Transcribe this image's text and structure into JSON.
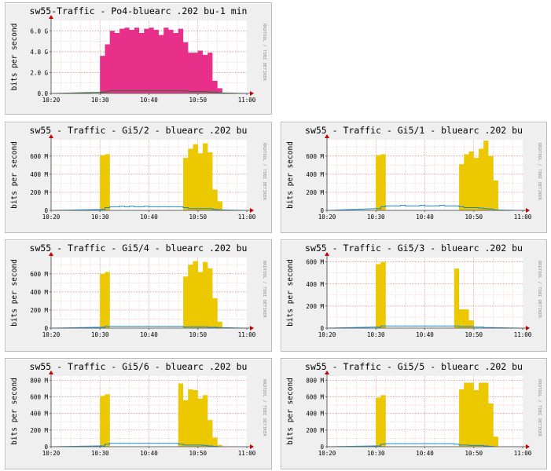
{
  "chart_data": [
    {
      "type": "area",
      "title": "sw55-Traffic - Po4-bluearc .202 bu-1 min",
      "ylabel": "bits per second",
      "side_text": "RRDTOOL / TOBI OETIKER",
      "x_ticks": [
        "10:20",
        "10:30",
        "10:40",
        "10:50",
        "11:00"
      ],
      "y_ticks": [
        "0.0",
        "2.0 G",
        "4.0 G",
        "6.0 G"
      ],
      "ylim": [
        0,
        7000000000
      ],
      "color": "#e8308a",
      "x": [
        "10:30",
        "10:31",
        "10:32",
        "10:33",
        "10:34",
        "10:35",
        "10:36",
        "10:37",
        "10:38",
        "10:39",
        "10:40",
        "10:41",
        "10:42",
        "10:43",
        "10:44",
        "10:45",
        "10:46",
        "10:47",
        "10:48",
        "10:49",
        "10:50",
        "10:51",
        "10:52",
        "10:53",
        "10:54"
      ],
      "series": [
        {
          "values": [
            3600000000,
            4700000000,
            6000000000,
            5800000000,
            6200000000,
            6300000000,
            6100000000,
            6300000000,
            5800000000,
            6200000000,
            6300000000,
            6100000000,
            5600000000,
            6300000000,
            6100000000,
            5800000000,
            6200000000,
            4900000000,
            3900000000,
            3900000000,
            4100000000,
            3700000000,
            3900000000,
            1200000000,
            500000000
          ]
        },
        {
          "values": [
            100000000,
            200000000,
            250000000,
            250000000,
            250000000,
            250000000,
            250000000,
            250000000,
            250000000,
            250000000,
            250000000,
            250000000,
            250000000,
            250000000,
            250000000,
            250000000,
            250000000,
            250000000,
            200000000,
            200000000,
            200000000,
            200000000,
            150000000,
            100000000,
            50000000
          ],
          "color": "#2c6f2c"
        }
      ]
    },
    {
      "type": "area",
      "title": "sw55 - Traffic - Gi5/2 - bluearc .202 bu",
      "ylabel": "bits per second",
      "side_text": "RRDTOOL / TOBI OETIKER",
      "x_ticks": [
        "10:20",
        "10:30",
        "10:40",
        "10:50",
        "11:00"
      ],
      "y_ticks": [
        "0",
        "200 M",
        "400 M",
        "600 M"
      ],
      "ylim": [
        0,
        780000000
      ],
      "color": "#ecc800",
      "x": [
        "10:30",
        "10:31",
        "10:32",
        "10:33",
        "10:34",
        "10:35",
        "10:36",
        "10:37",
        "10:38",
        "10:39",
        "10:40",
        "10:41",
        "10:42",
        "10:43",
        "10:44",
        "10:45",
        "10:46",
        "10:47",
        "10:48",
        "10:49",
        "10:50",
        "10:51",
        "10:52",
        "10:53",
        "10:54"
      ],
      "series": [
        {
          "values": [
            610000000,
            620000000,
            0,
            0,
            0,
            0,
            0,
            0,
            0,
            0,
            0,
            0,
            0,
            0,
            0,
            0,
            0,
            580000000,
            680000000,
            730000000,
            630000000,
            740000000,
            640000000,
            230000000,
            100000000
          ]
        },
        {
          "values": [
            10000000,
            30000000,
            40000000,
            40000000,
            45000000,
            40000000,
            45000000,
            40000000,
            40000000,
            45000000,
            40000000,
            40000000,
            40000000,
            40000000,
            40000000,
            40000000,
            40000000,
            30000000,
            20000000,
            20000000,
            20000000,
            20000000,
            20000000,
            10000000,
            5000000
          ],
          "color": "#1a87c8"
        }
      ]
    },
    {
      "type": "area",
      "title": "sw55 - Traffic - Gi5/1 - bluearc .202 bu",
      "ylabel": "bits per second",
      "side_text": "RRDTOOL / TOBI OETIKER",
      "x_ticks": [
        "10:20",
        "10:30",
        "10:40",
        "10:50",
        "11:00"
      ],
      "y_ticks": [
        "0",
        "200 M",
        "400 M",
        "600 M"
      ],
      "ylim": [
        0,
        780000000
      ],
      "color": "#ecc800",
      "x": [
        "10:30",
        "10:31",
        "10:32",
        "10:33",
        "10:34",
        "10:35",
        "10:36",
        "10:37",
        "10:38",
        "10:39",
        "10:40",
        "10:41",
        "10:42",
        "10:43",
        "10:44",
        "10:45",
        "10:46",
        "10:47",
        "10:48",
        "10:49",
        "10:50",
        "10:51",
        "10:52",
        "10:53",
        "10:54"
      ],
      "series": [
        {
          "values": [
            610000000,
            620000000,
            0,
            0,
            0,
            0,
            0,
            0,
            0,
            0,
            0,
            0,
            0,
            0,
            0,
            0,
            0,
            510000000,
            620000000,
            650000000,
            580000000,
            680000000,
            770000000,
            600000000,
            330000000
          ]
        },
        {
          "values": [
            20000000,
            40000000,
            50000000,
            50000000,
            50000000,
            55000000,
            50000000,
            50000000,
            50000000,
            55000000,
            50000000,
            50000000,
            50000000,
            55000000,
            50000000,
            50000000,
            50000000,
            40000000,
            30000000,
            30000000,
            30000000,
            25000000,
            20000000,
            15000000,
            5000000
          ],
          "color": "#1a87c8"
        }
      ]
    },
    {
      "type": "area",
      "title": "sw55 - Traffic - Gi5/4 - bluearc .202 bu",
      "ylabel": "bits per second",
      "side_text": "RRDTOOL / TOBI OETIKER",
      "x_ticks": [
        "10:20",
        "10:30",
        "10:40",
        "10:50",
        "11:00"
      ],
      "y_ticks": [
        "0",
        "200 M",
        "400 M",
        "600 M"
      ],
      "ylim": [
        0,
        780000000
      ],
      "color": "#ecc800",
      "x": [
        "10:30",
        "10:31",
        "10:32",
        "10:33",
        "10:34",
        "10:35",
        "10:36",
        "10:37",
        "10:38",
        "10:39",
        "10:40",
        "10:41",
        "10:42",
        "10:43",
        "10:44",
        "10:45",
        "10:46",
        "10:47",
        "10:48",
        "10:49",
        "10:50",
        "10:51",
        "10:52",
        "10:53",
        "10:54"
      ],
      "series": [
        {
          "values": [
            600000000,
            620000000,
            0,
            0,
            0,
            0,
            0,
            0,
            0,
            0,
            0,
            0,
            0,
            0,
            0,
            0,
            0,
            570000000,
            700000000,
            740000000,
            620000000,
            730000000,
            660000000,
            330000000,
            70000000
          ]
        },
        {
          "values": [
            10000000,
            20000000,
            20000000,
            20000000,
            20000000,
            20000000,
            20000000,
            20000000,
            20000000,
            20000000,
            20000000,
            20000000,
            20000000,
            20000000,
            20000000,
            20000000,
            20000000,
            15000000,
            15000000,
            15000000,
            15000000,
            15000000,
            10000000,
            10000000,
            5000000
          ],
          "color": "#1a87c8"
        }
      ]
    },
    {
      "type": "area",
      "title": "sw55 - Traffic - Gi5/3 - bluearc .202 bu",
      "ylabel": "bits per second",
      "side_text": "RRDTOOL / TOBI OETIKER",
      "x_ticks": [
        "10:20",
        "10:30",
        "10:40",
        "10:50",
        "11:00"
      ],
      "y_ticks": [
        "0",
        "200 M",
        "400 M",
        "600 M"
      ],
      "ylim": [
        0,
        640000000
      ],
      "color": "#ecc800",
      "x": [
        "10:30",
        "10:31",
        "10:32",
        "10:33",
        "10:34",
        "10:35",
        "10:36",
        "10:37",
        "10:38",
        "10:39",
        "10:40",
        "10:41",
        "10:42",
        "10:43",
        "10:44",
        "10:45",
        "10:46",
        "10:47",
        "10:48",
        "10:49",
        "10:50",
        "10:51",
        "10:52"
      ],
      "series": [
        {
          "values": [
            580000000,
            600000000,
            0,
            0,
            0,
            0,
            0,
            0,
            0,
            0,
            0,
            0,
            0,
            0,
            0,
            0,
            540000000,
            170000000,
            170000000,
            70000000,
            0,
            0,
            0
          ]
        },
        {
          "values": [
            10000000,
            20000000,
            20000000,
            20000000,
            20000000,
            20000000,
            20000000,
            20000000,
            20000000,
            20000000,
            20000000,
            20000000,
            20000000,
            20000000,
            20000000,
            20000000,
            20000000,
            15000000,
            15000000,
            15000000,
            10000000,
            10000000,
            5000000
          ],
          "color": "#1a87c8"
        }
      ]
    },
    {
      "type": "area",
      "title": "sw55 - Traffic - Gi5/6 - bluearc .202 bu",
      "ylabel": "bits per second",
      "side_text": "RRDTOOL / TOBI OETIKER",
      "x_ticks": [
        "10:20",
        "10:30",
        "10:40",
        "10:50",
        "11:00"
      ],
      "y_ticks": [
        "0",
        "200 M",
        "400 M",
        "600 M",
        "800 M"
      ],
      "ylim": [
        0,
        850000000
      ],
      "color": "#ecc800",
      "x": [
        "10:30",
        "10:31",
        "10:32",
        "10:33",
        "10:34",
        "10:35",
        "10:36",
        "10:37",
        "10:38",
        "10:39",
        "10:40",
        "10:41",
        "10:42",
        "10:43",
        "10:44",
        "10:45",
        "10:46",
        "10:47",
        "10:48",
        "10:49",
        "10:50",
        "10:51",
        "10:52",
        "10:53",
        "10:54"
      ],
      "series": [
        {
          "values": [
            610000000,
            630000000,
            0,
            0,
            0,
            0,
            0,
            0,
            0,
            0,
            0,
            0,
            0,
            0,
            0,
            0,
            760000000,
            560000000,
            690000000,
            680000000,
            580000000,
            620000000,
            320000000,
            110000000,
            20000000
          ]
        },
        {
          "values": [
            10000000,
            30000000,
            40000000,
            40000000,
            40000000,
            40000000,
            40000000,
            40000000,
            40000000,
            40000000,
            40000000,
            40000000,
            40000000,
            40000000,
            40000000,
            40000000,
            30000000,
            20000000,
            20000000,
            20000000,
            20000000,
            15000000,
            10000000,
            5000000,
            0
          ],
          "color": "#1a87c8"
        }
      ]
    },
    {
      "type": "area",
      "title": "sw55 - Traffic - Gi5/5 - bluearc .202 bu",
      "ylabel": "bits per second",
      "side_text": "RRDTOOL / TOBI OETIKER",
      "x_ticks": [
        "10:20",
        "10:30",
        "10:40",
        "10:50",
        "11:00"
      ],
      "y_ticks": [
        "0",
        "200 M",
        "400 M",
        "600 M",
        "800 M"
      ],
      "ylim": [
        0,
        850000000
      ],
      "color": "#ecc800",
      "x": [
        "10:30",
        "10:31",
        "10:32",
        "10:33",
        "10:34",
        "10:35",
        "10:36",
        "10:37",
        "10:38",
        "10:39",
        "10:40",
        "10:41",
        "10:42",
        "10:43",
        "10:44",
        "10:45",
        "10:46",
        "10:47",
        "10:48",
        "10:49",
        "10:50",
        "10:51",
        "10:52",
        "10:53",
        "10:54"
      ],
      "series": [
        {
          "values": [
            590000000,
            620000000,
            0,
            0,
            0,
            0,
            0,
            0,
            0,
            0,
            0,
            0,
            0,
            0,
            0,
            0,
            0,
            690000000,
            770000000,
            770000000,
            680000000,
            770000000,
            770000000,
            520000000,
            120000000
          ]
        },
        {
          "values": [
            10000000,
            30000000,
            35000000,
            35000000,
            35000000,
            35000000,
            35000000,
            35000000,
            35000000,
            35000000,
            35000000,
            35000000,
            35000000,
            35000000,
            35000000,
            35000000,
            30000000,
            20000000,
            20000000,
            15000000,
            15000000,
            15000000,
            10000000,
            5000000,
            0
          ],
          "color": "#1a87c8"
        }
      ]
    }
  ]
}
